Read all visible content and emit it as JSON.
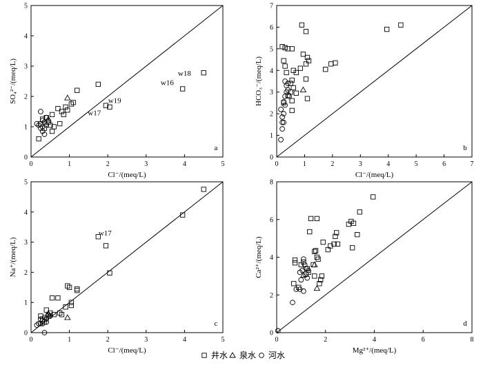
{
  "legend": [
    {
      "name": "井水",
      "symbol": "square"
    },
    {
      "name": "泉水",
      "symbol": "triangle"
    },
    {
      "name": "河水",
      "symbol": "circle"
    }
  ],
  "chart_data": [
    {
      "panel": "a",
      "type": "scatter",
      "xlabel": "Cl⁻/(meq/L)",
      "ylabel": "SO₄²⁻/(meq/L)",
      "xlim": [
        0,
        5
      ],
      "ylim": [
        0,
        5
      ],
      "xticks": [
        0,
        1,
        2,
        3,
        4,
        5
      ],
      "yticks": [
        0,
        1,
        2,
        3,
        4,
        5
      ],
      "reference_line": "1:1",
      "series": [
        {
          "name": "井水",
          "symbol": "square",
          "points": [
            [
              0.2,
              0.6
            ],
            [
              0.25,
              1.1
            ],
            [
              0.3,
              1.25
            ],
            [
              0.35,
              0.95
            ],
            [
              0.4,
              1.3
            ],
            [
              0.45,
              1.15
            ],
            [
              0.5,
              1.05
            ],
            [
              0.55,
              1.4
            ],
            [
              0.55,
              0.85
            ],
            [
              0.6,
              1.0
            ],
            [
              0.7,
              1.6
            ],
            [
              0.75,
              1.1
            ],
            [
              0.8,
              1.5
            ],
            [
              0.85,
              1.4
            ],
            [
              0.9,
              1.65
            ],
            [
              0.95,
              1.55
            ],
            [
              1.05,
              1.75
            ],
            [
              1.1,
              1.8
            ],
            [
              1.2,
              2.2
            ],
            [
              1.75,
              2.4
            ],
            [
              1.95,
              1.7
            ],
            [
              2.05,
              1.65
            ],
            [
              3.95,
              2.25
            ],
            [
              4.5,
              2.78
            ]
          ]
        },
        {
          "name": "泉水",
          "symbol": "triangle",
          "points": [
            [
              0.95,
              1.95
            ],
            [
              0.45,
              1.25
            ]
          ]
        },
        {
          "name": "河水",
          "symbol": "circle",
          "points": [
            [
              0.15,
              1.1
            ],
            [
              0.2,
              1.05
            ],
            [
              0.25,
              1.5
            ],
            [
              0.25,
              0.95
            ],
            [
              0.3,
              1.2
            ],
            [
              0.3,
              1.0
            ],
            [
              0.35,
              1.15
            ],
            [
              0.35,
              0.75
            ],
            [
              0.4,
              1.3
            ],
            [
              0.4,
              1.05
            ],
            [
              0.45,
              1.2
            ],
            [
              0.3,
              0.85
            ]
          ]
        }
      ],
      "annotations": [
        {
          "text": "w16",
          "x": 3.55,
          "y": 2.38
        },
        {
          "text": "w18",
          "x": 4.0,
          "y": 2.68
        },
        {
          "text": "w19",
          "x": 2.18,
          "y": 1.78
        },
        {
          "text": "w17",
          "x": 1.65,
          "y": 1.38
        }
      ]
    },
    {
      "panel": "b",
      "type": "scatter",
      "xlabel": "Cl⁻/(meq/L)",
      "ylabel": "HCO₃⁻/(meq/L)",
      "xlim": [
        0,
        7
      ],
      "ylim": [
        0,
        7
      ],
      "xticks": [
        0,
        1,
        2,
        3,
        4,
        5,
        6,
        7
      ],
      "yticks": [
        0,
        1,
        2,
        3,
        4,
        5,
        6,
        7
      ],
      "reference_line": "1:1",
      "series": [
        {
          "name": "井水",
          "symbol": "square",
          "points": [
            [
              0.2,
              5.1
            ],
            [
              0.3,
              5.05
            ],
            [
              0.4,
              5.0
            ],
            [
              0.55,
              5.0
            ],
            [
              0.9,
              6.1
            ],
            [
              1.05,
              5.8
            ],
            [
              0.95,
              4.75
            ],
            [
              1.1,
              4.6
            ],
            [
              0.85,
              4.1
            ],
            [
              0.7,
              3.9
            ],
            [
              0.6,
              4.0
            ],
            [
              1.05,
              4.3
            ],
            [
              0.25,
              4.45
            ],
            [
              0.3,
              4.2
            ],
            [
              0.35,
              3.9
            ],
            [
              0.55,
              3.55
            ],
            [
              0.5,
              3.4
            ],
            [
              0.6,
              3.2
            ],
            [
              0.5,
              3.0
            ],
            [
              0.7,
              2.95
            ],
            [
              0.4,
              2.85
            ],
            [
              0.55,
              2.6
            ],
            [
              1.05,
              3.6
            ],
            [
              1.15,
              4.45
            ],
            [
              0.25,
              2.5
            ],
            [
              0.55,
              2.15
            ],
            [
              1.1,
              2.7
            ],
            [
              1.75,
              4.05
            ],
            [
              1.95,
              4.3
            ],
            [
              2.1,
              4.35
            ],
            [
              3.95,
              5.9
            ],
            [
              4.45,
              6.1
            ]
          ]
        },
        {
          "name": "泉水",
          "symbol": "triangle",
          "points": [
            [
              0.95,
              3.1
            ]
          ]
        },
        {
          "name": "河水",
          "symbol": "circle",
          "points": [
            [
              0.15,
              2.2
            ],
            [
              0.2,
              1.6
            ],
            [
              0.2,
              1.3
            ],
            [
              0.15,
              0.8
            ],
            [
              0.25,
              1.6
            ],
            [
              0.25,
              2.0
            ],
            [
              0.3,
              2.4
            ],
            [
              0.3,
              2.8
            ],
            [
              0.35,
              3.3
            ],
            [
              0.3,
              3.5
            ],
            [
              0.35,
              3.0
            ],
            [
              0.4,
              3.1
            ],
            [
              0.45,
              2.8
            ],
            [
              0.2,
              1.85
            ],
            [
              0.25,
              2.55
            ],
            [
              0.4,
              3.4
            ]
          ]
        }
      ]
    },
    {
      "panel": "c",
      "type": "scatter",
      "xlabel": "Cl⁻/(meq/L)",
      "ylabel": "Na⁺/(meq/L)",
      "xlim": [
        0,
        5
      ],
      "ylim": [
        0,
        5
      ],
      "xticks": [
        0,
        1,
        2,
        3,
        4,
        5
      ],
      "yticks": [
        0,
        1,
        2,
        3,
        4,
        5
      ],
      "reference_line": "1:1",
      "series": [
        {
          "name": "井水",
          "symbol": "square",
          "points": [
            [
              0.25,
              0.55
            ],
            [
              0.3,
              0.45
            ],
            [
              0.35,
              0.35
            ],
            [
              0.4,
              0.75
            ],
            [
              0.45,
              0.55
            ],
            [
              0.5,
              0.65
            ],
            [
              0.55,
              1.15
            ],
            [
              0.6,
              0.6
            ],
            [
              0.7,
              1.15
            ],
            [
              0.75,
              0.65
            ],
            [
              0.8,
              0.6
            ],
            [
              0.9,
              0.85
            ],
            [
              0.95,
              1.55
            ],
            [
              1.0,
              1.5
            ],
            [
              1.05,
              1.0
            ],
            [
              1.05,
              0.9
            ],
            [
              1.2,
              1.4
            ],
            [
              1.2,
              1.45
            ],
            [
              1.75,
              3.18
            ],
            [
              1.95,
              2.88
            ],
            [
              2.05,
              1.98
            ],
            [
              3.95,
              3.9
            ],
            [
              4.5,
              4.75
            ]
          ]
        },
        {
          "name": "泉水",
          "symbol": "triangle",
          "points": [
            [
              0.95,
              0.5
            ],
            [
              0.45,
              0.62
            ]
          ]
        },
        {
          "name": "河水",
          "symbol": "circle",
          "points": [
            [
              0.15,
              0.25
            ],
            [
              0.2,
              0.3
            ],
            [
              0.25,
              0.3
            ],
            [
              0.3,
              0.4
            ],
            [
              0.35,
              0.0
            ],
            [
              0.35,
              0.5
            ],
            [
              0.4,
              0.45
            ],
            [
              0.45,
              0.6
            ],
            [
              0.5,
              0.55
            ],
            [
              0.3,
              0.3
            ],
            [
              0.25,
              0.45
            ],
            [
              0.4,
              0.35
            ]
          ]
        }
      ],
      "annotations": [
        {
          "text": "w17",
          "x": 1.93,
          "y": 3.22
        }
      ]
    },
    {
      "panel": "d",
      "type": "scatter",
      "xlabel": "Mg²⁺/(meq/L)",
      "ylabel": "Ca²⁺/(meq/L)",
      "xlim": [
        0,
        8
      ],
      "ylim": [
        0,
        8
      ],
      "xticks": [
        0,
        2,
        4,
        6,
        8
      ],
      "yticks": [
        0,
        2,
        4,
        6,
        8
      ],
      "reference_line": "1:1",
      "series": [
        {
          "name": "井水",
          "symbol": "square",
          "points": [
            [
              0.7,
              2.6
            ],
            [
              0.75,
              3.7
            ],
            [
              0.75,
              3.85
            ],
            [
              0.9,
              2.4
            ],
            [
              1.0,
              3.6
            ],
            [
              1.1,
              3.75
            ],
            [
              1.2,
              3.1
            ],
            [
              1.25,
              3.4
            ],
            [
              1.3,
              3.2
            ],
            [
              1.35,
              5.35
            ],
            [
              1.4,
              6.05
            ],
            [
              1.5,
              3.6
            ],
            [
              1.55,
              3.0
            ],
            [
              1.6,
              4.35
            ],
            [
              1.65,
              6.05
            ],
            [
              1.7,
              3.9
            ],
            [
              1.75,
              2.6
            ],
            [
              1.8,
              2.8
            ],
            [
              1.85,
              3.0
            ],
            [
              1.9,
              4.8
            ],
            [
              2.1,
              4.4
            ],
            [
              2.2,
              4.6
            ],
            [
              2.35,
              4.7
            ],
            [
              2.4,
              5.1
            ],
            [
              2.45,
              5.3
            ],
            [
              2.5,
              4.7
            ],
            [
              2.95,
              5.75
            ],
            [
              3.05,
              5.9
            ],
            [
              3.1,
              4.5
            ],
            [
              3.15,
              5.8
            ],
            [
              3.3,
              5.2
            ],
            [
              3.4,
              6.4
            ],
            [
              3.95,
              7.2
            ],
            [
              1.55,
              4.3
            ],
            [
              1.65,
              4.0
            ]
          ]
        },
        {
          "name": "泉水",
          "symbol": "triangle",
          "points": [
            [
              1.65,
              2.35
            ],
            [
              1.55,
              3.6
            ],
            [
              1.1,
              3.05
            ]
          ]
        },
        {
          "name": "河水",
          "symbol": "circle",
          "points": [
            [
              0.05,
              0.1
            ],
            [
              0.65,
              1.6
            ],
            [
              0.8,
              2.3
            ],
            [
              0.95,
              2.3
            ],
            [
              1.0,
              2.8
            ],
            [
              1.05,
              3.3
            ],
            [
              1.1,
              2.2
            ],
            [
              1.15,
              3.6
            ],
            [
              1.2,
              3.4
            ],
            [
              1.25,
              2.9
            ],
            [
              1.3,
              3.3
            ],
            [
              1.1,
              3.9
            ],
            [
              0.95,
              3.2
            ]
          ]
        }
      ]
    }
  ],
  "colors": {
    "marker": "#000000",
    "axis": "#000000",
    "background": "#ffffff"
  }
}
